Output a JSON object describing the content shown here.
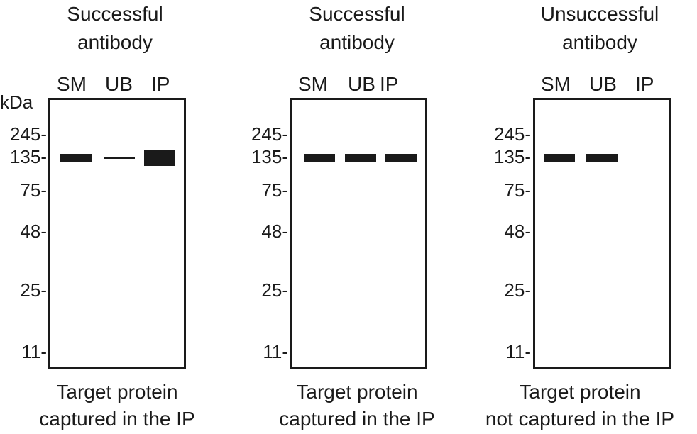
{
  "unit_label": "kDa",
  "markers": [
    "245",
    "135",
    "75",
    "48",
    "25",
    "11"
  ],
  "lanes": [
    "SM",
    "UB",
    "IP"
  ],
  "panels": [
    {
      "title_line1": "Successful",
      "title_line2": "antibody",
      "caption_line1": "Target protein",
      "caption_line2": "captured in the IP"
    },
    {
      "title_line1": "Successful",
      "title_line2": "antibody",
      "caption_line1": "Target protein",
      "caption_line2": "captured in the IP"
    },
    {
      "title_line1": "Unsuccessful",
      "title_line2": "antibody",
      "caption_line1": "Target protein",
      "caption_line2": "not captured in the IP"
    }
  ]
}
